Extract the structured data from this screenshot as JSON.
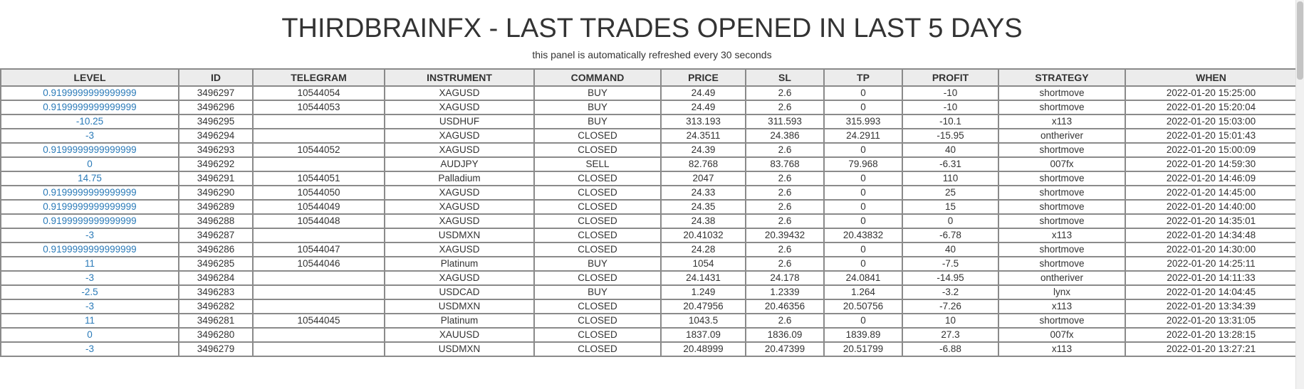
{
  "header": {
    "title": "THIRDBRAINFX - LAST TRADES OPENED IN LAST 5 DAYS",
    "subtitle": "this panel is automatically refreshed every 30 seconds"
  },
  "table": {
    "columns": [
      "LEVEL",
      "ID",
      "TELEGRAM",
      "INSTRUMENT",
      "COMMAND",
      "PRICE",
      "SL",
      "TP",
      "PROFIT",
      "STRATEGY",
      "WHEN"
    ],
    "rows": [
      [
        "0.9199999999999999",
        "3496297",
        "10544054",
        "XAGUSD",
        "BUY",
        "24.49",
        "2.6",
        "0",
        "-10",
        "shortmove",
        "2022-01-20 15:25:00"
      ],
      [
        "0.9199999999999999",
        "3496296",
        "10544053",
        "XAGUSD",
        "BUY",
        "24.49",
        "2.6",
        "0",
        "-10",
        "shortmove",
        "2022-01-20 15:20:04"
      ],
      [
        "-10.25",
        "3496295",
        "",
        "USDHUF",
        "BUY",
        "313.193",
        "311.593",
        "315.993",
        "-10.1",
        "x113",
        "2022-01-20 15:03:00"
      ],
      [
        "-3",
        "3496294",
        "",
        "XAGUSD",
        "CLOSED",
        "24.3511",
        "24.386",
        "24.2911",
        "-15.95",
        "ontheriver",
        "2022-01-20 15:01:43"
      ],
      [
        "0.9199999999999999",
        "3496293",
        "10544052",
        "XAGUSD",
        "CLOSED",
        "24.39",
        "2.6",
        "0",
        "40",
        "shortmove",
        "2022-01-20 15:00:09"
      ],
      [
        "0",
        "3496292",
        "",
        "AUDJPY",
        "SELL",
        "82.768",
        "83.768",
        "79.968",
        "-6.31",
        "007fx",
        "2022-01-20 14:59:30"
      ],
      [
        "14.75",
        "3496291",
        "10544051",
        "Palladium",
        "CLOSED",
        "2047",
        "2.6",
        "0",
        "110",
        "shortmove",
        "2022-01-20 14:46:09"
      ],
      [
        "0.9199999999999999",
        "3496290",
        "10544050",
        "XAGUSD",
        "CLOSED",
        "24.33",
        "2.6",
        "0",
        "25",
        "shortmove",
        "2022-01-20 14:45:00"
      ],
      [
        "0.9199999999999999",
        "3496289",
        "10544049",
        "XAGUSD",
        "CLOSED",
        "24.35",
        "2.6",
        "0",
        "15",
        "shortmove",
        "2022-01-20 14:40:00"
      ],
      [
        "0.9199999999999999",
        "3496288",
        "10544048",
        "XAGUSD",
        "CLOSED",
        "24.38",
        "2.6",
        "0",
        "0",
        "shortmove",
        "2022-01-20 14:35:01"
      ],
      [
        "-3",
        "3496287",
        "",
        "USDMXN",
        "CLOSED",
        "20.41032",
        "20.39432",
        "20.43832",
        "-6.78",
        "x113",
        "2022-01-20 14:34:48"
      ],
      [
        "0.9199999999999999",
        "3496286",
        "10544047",
        "XAGUSD",
        "CLOSED",
        "24.28",
        "2.6",
        "0",
        "40",
        "shortmove",
        "2022-01-20 14:30:00"
      ],
      [
        "11",
        "3496285",
        "10544046",
        "Platinum",
        "BUY",
        "1054",
        "2.6",
        "0",
        "-7.5",
        "shortmove",
        "2022-01-20 14:25:11"
      ],
      [
        "-3",
        "3496284",
        "",
        "XAGUSD",
        "CLOSED",
        "24.1431",
        "24.178",
        "24.0841",
        "-14.95",
        "ontheriver",
        "2022-01-20 14:11:33"
      ],
      [
        "-2.5",
        "3496283",
        "",
        "USDCAD",
        "BUY",
        "1.249",
        "1.2339",
        "1.264",
        "-3.2",
        "lynx",
        "2022-01-20 14:04:45"
      ],
      [
        "-3",
        "3496282",
        "",
        "USDMXN",
        "CLOSED",
        "20.47956",
        "20.46356",
        "20.50756",
        "-7.26",
        "x113",
        "2022-01-20 13:34:39"
      ],
      [
        "11",
        "3496281",
        "10544045",
        "Platinum",
        "CLOSED",
        "1043.5",
        "2.6",
        "0",
        "10",
        "shortmove",
        "2022-01-20 13:31:05"
      ],
      [
        "0",
        "3496280",
        "",
        "XAUUSD",
        "CLOSED",
        "1837.09",
        "1836.09",
        "1839.89",
        "27.3",
        "007fx",
        "2022-01-20 13:28:15"
      ],
      [
        "-3",
        "3496279",
        "",
        "USDMXN",
        "CLOSED",
        "20.48999",
        "20.47399",
        "20.51799",
        "-6.88",
        "x113",
        "2022-01-20 13:27:21"
      ]
    ]
  },
  "colors": {
    "link": "#2a7ab8",
    "header_bg": "#ececec",
    "border": "#8a8a8a",
    "text": "#333333"
  }
}
